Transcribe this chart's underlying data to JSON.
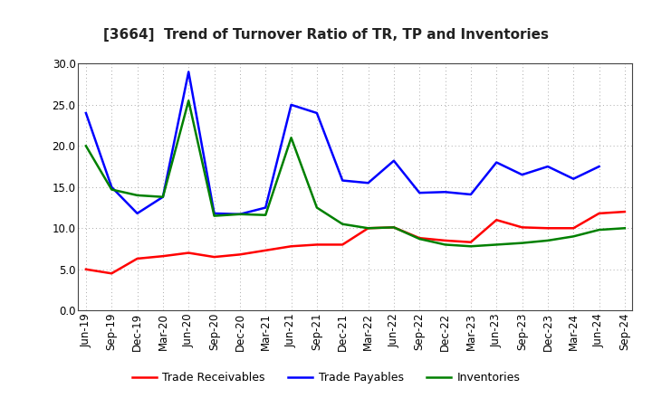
{
  "title": "[3664]  Trend of Turnover Ratio of TR, TP and Inventories",
  "x_labels": [
    "Jun-19",
    "Sep-19",
    "Dec-19",
    "Mar-20",
    "Jun-20",
    "Sep-20",
    "Dec-20",
    "Mar-21",
    "Jun-21",
    "Sep-21",
    "Dec-21",
    "Mar-22",
    "Jun-22",
    "Sep-22",
    "Dec-22",
    "Mar-23",
    "Jun-23",
    "Sep-23",
    "Dec-23",
    "Mar-24",
    "Jun-24",
    "Sep-24"
  ],
  "trade_receivables": [
    5.0,
    4.5,
    6.3,
    6.6,
    7.0,
    6.5,
    6.8,
    7.3,
    7.8,
    8.0,
    8.0,
    10.0,
    10.1,
    8.8,
    8.5,
    8.3,
    11.0,
    10.1,
    10.0,
    10.0,
    11.8,
    12.0
  ],
  "trade_payables": [
    24.0,
    15.0,
    11.8,
    13.8,
    29.0,
    11.8,
    11.7,
    12.5,
    25.0,
    24.0,
    15.8,
    15.5,
    18.2,
    14.3,
    14.4,
    14.1,
    18.0,
    16.5,
    17.5,
    16.0,
    17.5,
    null
  ],
  "inventories": [
    20.0,
    14.7,
    14.0,
    13.8,
    25.5,
    11.5,
    11.7,
    11.6,
    21.0,
    12.5,
    10.5,
    10.0,
    10.1,
    8.7,
    8.0,
    7.8,
    8.0,
    8.2,
    8.5,
    9.0,
    9.8,
    10.0
  ],
  "ylim": [
    0.0,
    30.0
  ],
  "yticks": [
    0.0,
    5.0,
    10.0,
    15.0,
    20.0,
    25.0,
    30.0
  ],
  "color_tr": "#ff0000",
  "color_tp": "#0000ff",
  "color_inv": "#008000",
  "bg_color": "#ffffff",
  "plot_bg_color": "#ffffff",
  "legend_tr": "Trade Receivables",
  "legend_tp": "Trade Payables",
  "legend_inv": "Inventories",
  "linewidth": 1.8,
  "title_fontsize": 11,
  "tick_fontsize": 8.5
}
